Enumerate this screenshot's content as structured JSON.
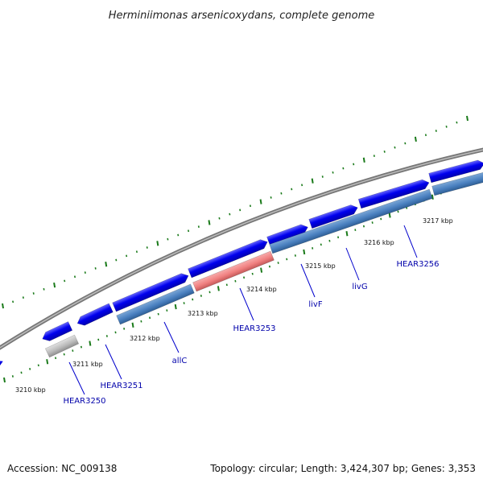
{
  "title": "Herminiimonas arsenicoxydans, complete genome",
  "footer": {
    "accession": "Accession: NC_009138",
    "stats": "Topology: circular; Length: 3,424,307 bp; Genes: 3,353"
  },
  "colors": {
    "forward_gene": "#0000ee",
    "reverse_gene": "#4a80c0",
    "highlighted_gene": "#f08080",
    "gray_gene": "#bbbbbb",
    "backbone": "#888888",
    "tick": "#1a7a1a",
    "label": "#0000aa"
  },
  "kbp_labels": [
    "3210 kbp",
    "3211 kbp",
    "3212 kbp",
    "3213 kbp",
    "3214 kbp",
    "3215 kbp",
    "3216 kbp",
    "3217 kbp"
  ],
  "gene_labels": [
    "HEAR3250",
    "HEAR3251",
    "allC",
    "HEAR3253",
    "livF",
    "livG",
    "HEAR3256"
  ]
}
